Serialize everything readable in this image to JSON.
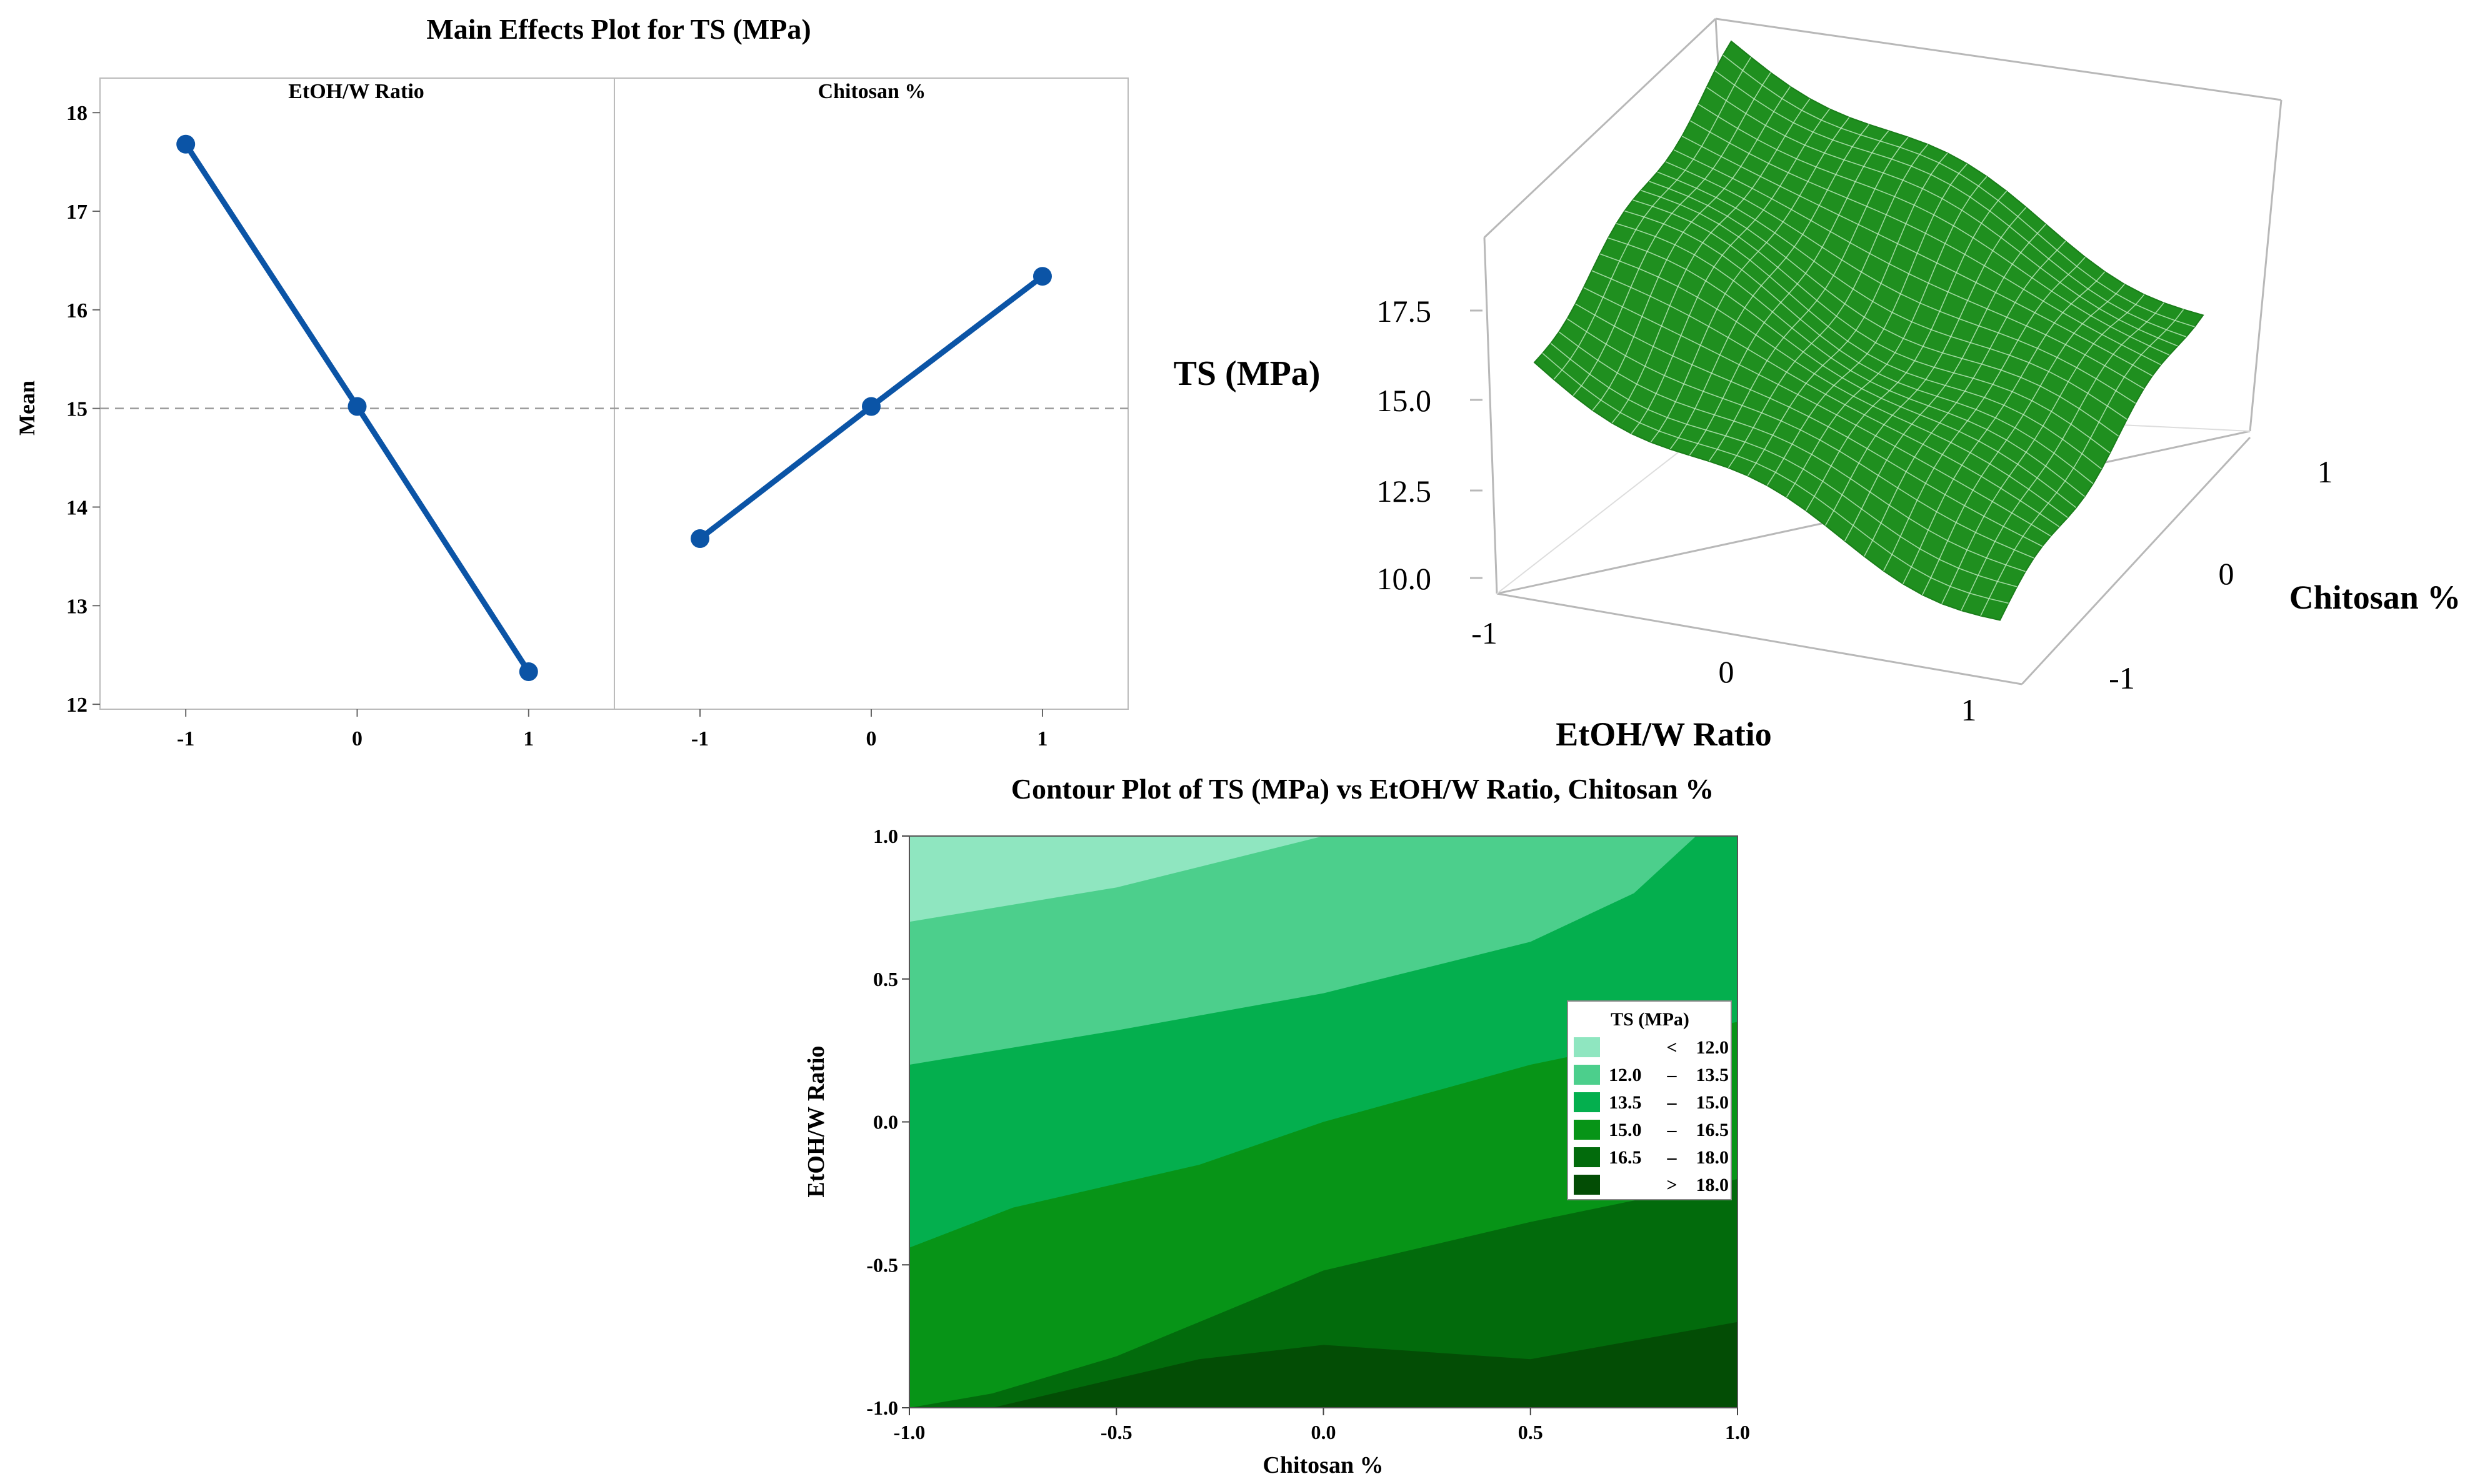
{
  "chart_data": [
    {
      "type": "line",
      "title": "Main Effects Plot for TS (MPa)",
      "ylabel": "Mean",
      "ylim": [
        11.95,
        18.35
      ],
      "yticks": [
        "12",
        "13",
        "14",
        "15",
        "16",
        "17",
        "18"
      ],
      "reference_line": 15.0,
      "grid": false,
      "panels": [
        {
          "label": "EtOH/W Ratio",
          "x": [
            "-1",
            "0",
            "1"
          ],
          "values": [
            17.68,
            15.02,
            12.33
          ]
        },
        {
          "label": "Chitosan %",
          "x": [
            "-1",
            "0",
            "1"
          ],
          "values": [
            13.68,
            15.02,
            16.34
          ]
        }
      ],
      "colors": {
        "line": "#0b54a6",
        "reference": "#9a9a9a"
      }
    },
    {
      "type": "surface",
      "zlabel": "TS (MPa)",
      "xlabel": "EtOH/W Ratio",
      "ylabel": "Chitosan %",
      "zticks": [
        "17.5",
        "15.0",
        "12.5",
        "10.0"
      ],
      "xticks": [
        "-1",
        "0",
        "1"
      ],
      "yticks": [
        "-1",
        "0",
        "1"
      ],
      "colors": {
        "surface": "#1f8f1f",
        "mesh": "#c9f0c9",
        "box": "#b8b8b8"
      }
    },
    {
      "type": "contour",
      "title": "Contour Plot of TS (MPa) vs EtOH/W Ratio, Chitosan %",
      "xlabel": "Chitosan %",
      "ylabel": "EtOH/W Ratio",
      "xlim": [
        -1.0,
        1.0
      ],
      "ylim": [
        -1.0,
        1.0
      ],
      "xticks": [
        "-1.0",
        "-0.5",
        "0.0",
        "0.5",
        "1.0"
      ],
      "yticks": [
        "-1.0",
        "-0.5",
        "0.0",
        "0.5",
        "1.0"
      ],
      "legend": {
        "title": "TS (MPa)",
        "placement": "right",
        "entries": [
          {
            "lo": "<",
            "hi": "12.0",
            "color": "#8fe6c0"
          },
          {
            "lo": "12.0",
            "hi": "13.5",
            "color": "#4ccf8c"
          },
          {
            "lo": "13.5",
            "hi": "15.0",
            "color": "#04af4e"
          },
          {
            "lo": "15.0",
            "hi": "16.5",
            "color": "#079417"
          },
          {
            "lo": "16.5",
            "hi": "18.0",
            "color": "#026b0c"
          },
          {
            "lo": ">",
            "hi": "18.0",
            "color": "#034d05"
          }
        ]
      },
      "levels": [
        12.0,
        13.5,
        15.0,
        16.5,
        18.0
      ],
      "boundaries": [
        {
          "level": 12.0,
          "points": [
            [
              -1.0,
              0.7
            ],
            [
              -0.5,
              0.82
            ],
            [
              0.0,
              1.0
            ]
          ]
        },
        {
          "level": 13.5,
          "points": [
            [
              -1.0,
              0.2
            ],
            [
              -0.5,
              0.32
            ],
            [
              0.0,
              0.45
            ],
            [
              0.5,
              0.63
            ],
            [
              0.75,
              0.8
            ],
            [
              0.9,
              1.0
            ]
          ]
        },
        {
          "level": 15.0,
          "points": [
            [
              -1.0,
              -0.44
            ],
            [
              -0.75,
              -0.3
            ],
            [
              -0.3,
              -0.15
            ],
            [
              0.0,
              0.0
            ],
            [
              0.5,
              0.2
            ],
            [
              1.0,
              0.35
            ]
          ]
        },
        {
          "level": 16.5,
          "points": [
            [
              -1.0,
              -1.0
            ],
            [
              -0.8,
              -0.95
            ],
            [
              -0.5,
              -0.82
            ],
            [
              0.0,
              -0.52
            ],
            [
              0.5,
              -0.35
            ],
            [
              1.0,
              -0.2
            ]
          ]
        },
        {
          "level": 18.0,
          "points": [
            [
              -0.8,
              -1.0
            ],
            [
              -0.3,
              -0.83
            ],
            [
              0.0,
              -0.78
            ],
            [
              0.5,
              -0.83
            ],
            [
              1.0,
              -0.7
            ]
          ]
        }
      ]
    }
  ]
}
